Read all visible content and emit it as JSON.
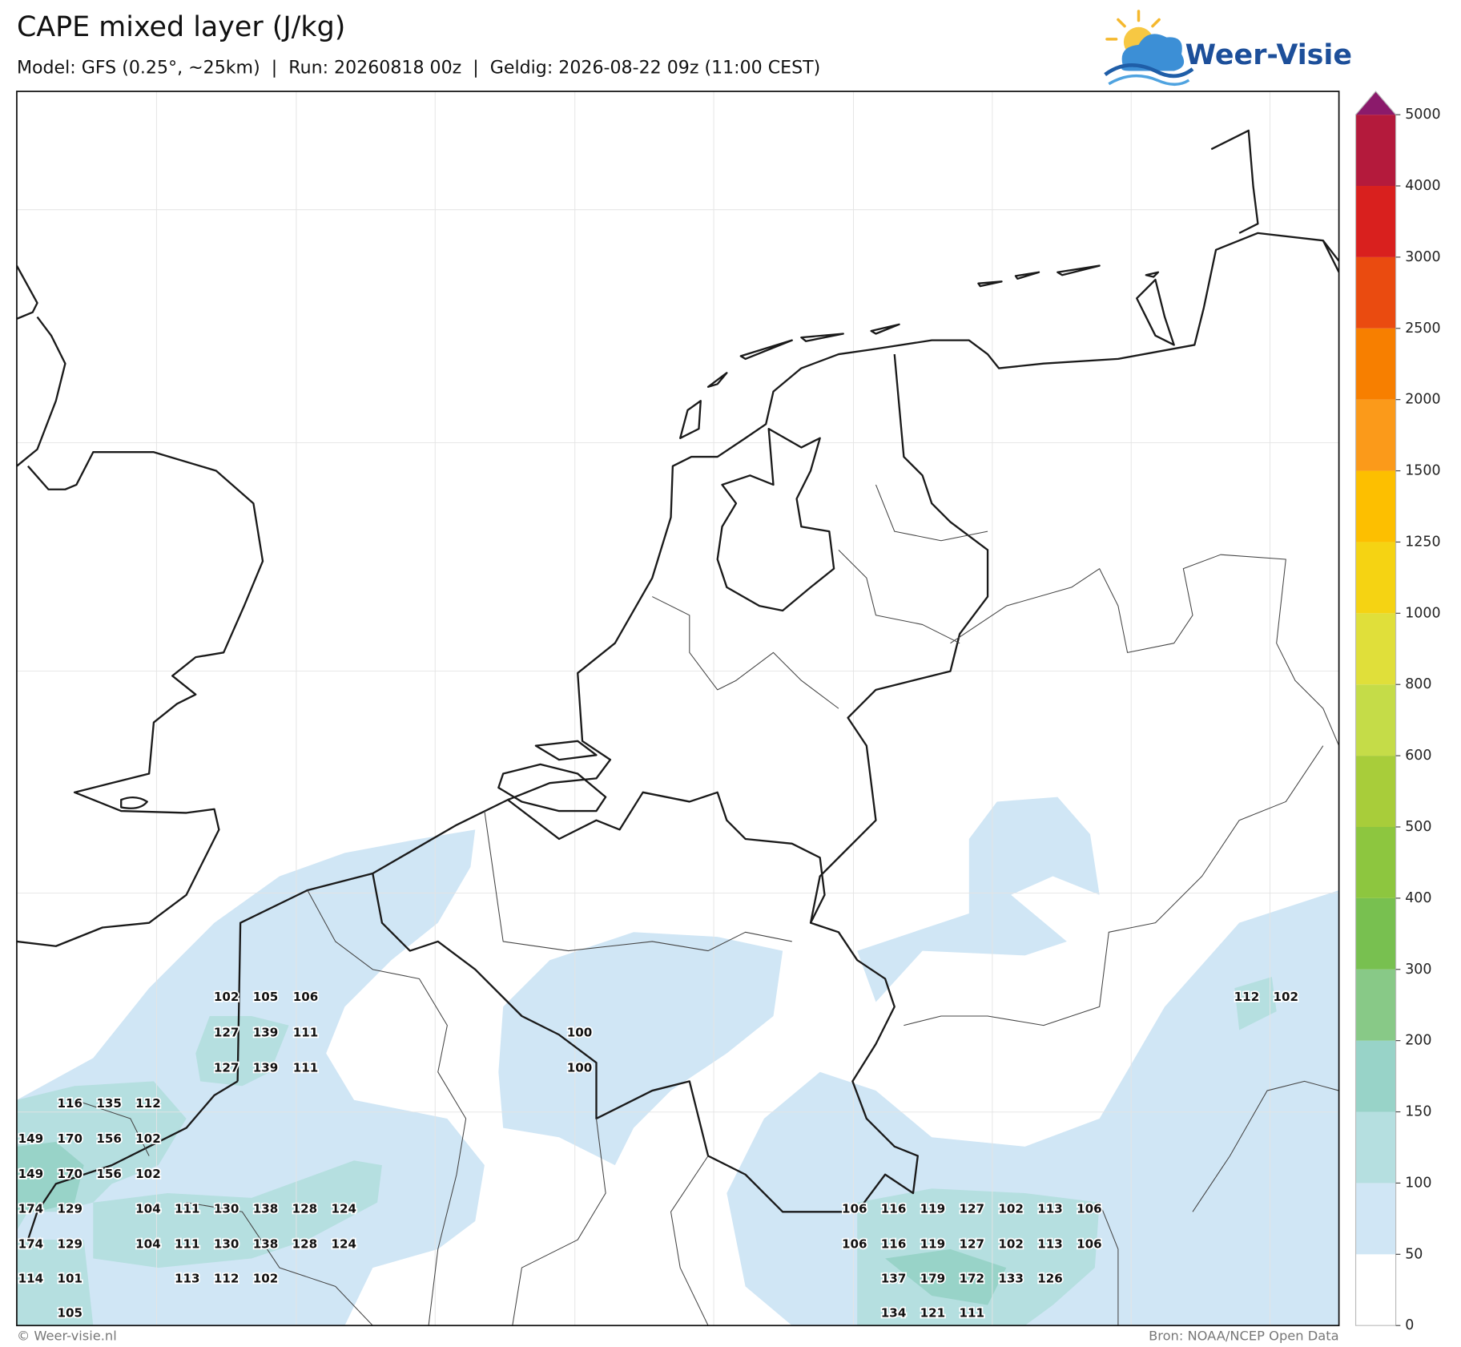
{
  "header": {
    "title": "CAPE mixed layer (J/kg)",
    "subtitle": "Model: GFS (0.25°, ~25km)  |  Run: 20260818 00z  |  Geldig: 2026-08-22 09z (11:00 CEST)",
    "logo": "Weer-Visie"
  },
  "colorbar": {
    "ticks": [
      0,
      50,
      100,
      150,
      200,
      300,
      400,
      500,
      600,
      800,
      1000,
      1250,
      1500,
      2000,
      2500,
      3000,
      4000,
      5000
    ],
    "colors": [
      "#ffffff",
      "#d0e6f5",
      "#b5dfe0",
      "#98d3c8",
      "#88c987",
      "#78c050",
      "#8dc63f",
      "#a8cd3a",
      "#c5dc48",
      "#e0df3a",
      "#f5d313",
      "#fdbf00",
      "#fb9a1a",
      "#f77f00",
      "#ea4b10",
      "#d9201e",
      "#b41a3c"
    ],
    "extend_color": "#8b1a6b"
  },
  "map_labels": [
    102,
    105,
    106,
    112,
    102,
    127,
    139,
    111,
    100,
    127,
    139,
    111,
    100,
    116,
    135,
    112,
    149,
    170,
    156,
    102,
    149,
    170,
    156,
    102,
    174,
    129,
    104,
    111,
    130,
    138,
    128,
    124,
    106,
    116,
    119,
    127,
    102,
    113,
    106,
    174,
    129,
    104,
    111,
    130,
    138,
    128,
    124,
    106,
    116,
    119,
    127,
    102,
    113,
    106,
    114,
    101,
    113,
    112,
    102,
    137,
    179,
    172,
    133,
    126,
    105,
    134,
    121,
    111
  ],
  "footer": {
    "left": "© Weer-visie.nl",
    "right": "Bron: NOAA/NCEP Open Data"
  }
}
